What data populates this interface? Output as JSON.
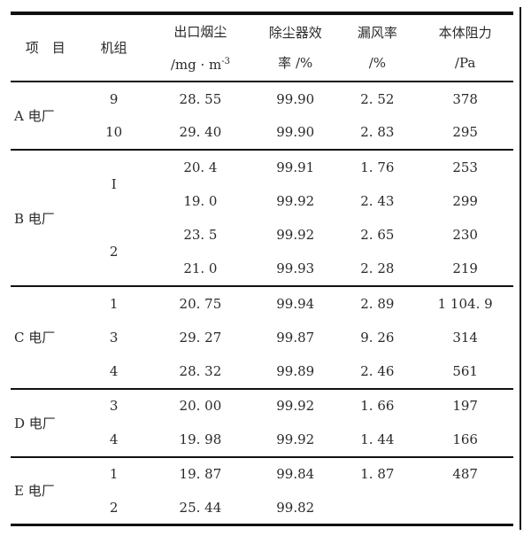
{
  "header": {
    "item": "项　目",
    "unit": "机组",
    "dust_l1": "出口烟尘",
    "dust_l2": "/mg · m",
    "dust_sup": "-3",
    "eff_l1": "除尘器效",
    "eff_l2": "率 /%",
    "leak_l1": "漏风率",
    "leak_l2": "/%",
    "res_l1": "本体阻力",
    "res_l2": "/Pa"
  },
  "groups": [
    {
      "plant": "A 电厂",
      "rows": [
        {
          "unit": "9",
          "dust": "28. 55",
          "eff": "99.90",
          "leak": "2. 52",
          "res": "378"
        },
        {
          "unit": "10",
          "dust": "29. 40",
          "eff": "99.90",
          "leak": "2. 83",
          "res": "295"
        }
      ]
    },
    {
      "plant": "B 电厂",
      "units": [
        "I",
        "2"
      ],
      "rows": [
        {
          "dust": "20. 4",
          "eff": "99.91",
          "leak": "1. 76",
          "res": "253"
        },
        {
          "dust": "19. 0",
          "eff": "99.92",
          "leak": "2. 43",
          "res": "299"
        },
        {
          "dust": "23. 5",
          "eff": "99.92",
          "leak": "2. 65",
          "res": "230"
        },
        {
          "dust": "21. 0",
          "eff": "99.93",
          "leak": "2. 28",
          "res": "219"
        }
      ]
    },
    {
      "plant": "C 电厂",
      "rows": [
        {
          "unit": "1",
          "dust": "20. 75",
          "eff": "99.94",
          "leak": "2. 89",
          "res": "1 104. 9"
        },
        {
          "unit": "3",
          "dust": "29. 27",
          "eff": "99.87",
          "leak": "9. 26",
          "res": "314"
        },
        {
          "unit": "4",
          "dust": "28. 32",
          "eff": "99.89",
          "leak": "2. 46",
          "res": "561"
        }
      ]
    },
    {
      "plant": "D 电厂",
      "rows": [
        {
          "unit": "3",
          "dust": "20. 00",
          "eff": "99.92",
          "leak": "1. 66",
          "res": "197"
        },
        {
          "unit": "4",
          "dust": "19. 98",
          "eff": "99.92",
          "leak": "1. 44",
          "res": "166"
        }
      ]
    },
    {
      "plant": "E 电厂",
      "rows": [
        {
          "unit": "1",
          "dust": "19. 87",
          "eff": "99.84",
          "leak": "1. 87",
          "res": "487"
        },
        {
          "unit": "2",
          "dust": "25. 44",
          "eff": "99.82",
          "leak": "",
          "res": ""
        }
      ]
    }
  ]
}
